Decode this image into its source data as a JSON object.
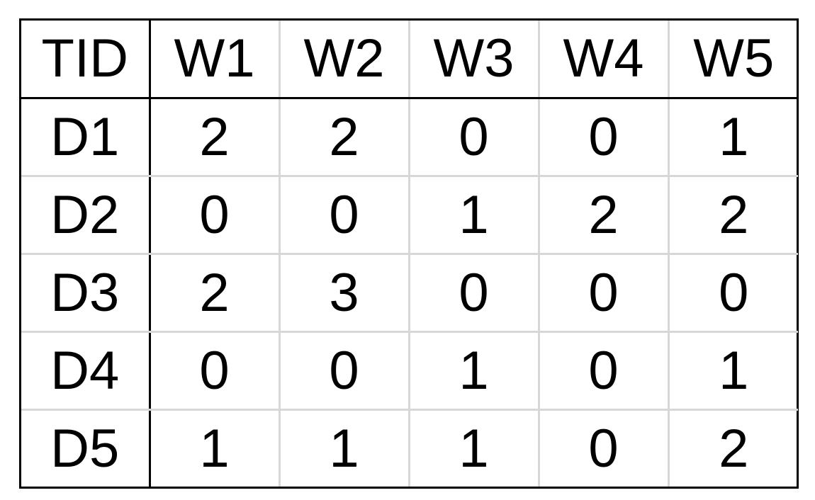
{
  "table": {
    "headers": [
      "TID",
      "W1",
      "W2",
      "W3",
      "W4",
      "W5"
    ],
    "rows": [
      {
        "id": "D1",
        "values": [
          "2",
          "2",
          "0",
          "0",
          "1"
        ]
      },
      {
        "id": "D2",
        "values": [
          "0",
          "0",
          "1",
          "2",
          "2"
        ]
      },
      {
        "id": "D3",
        "values": [
          "2",
          "3",
          "0",
          "0",
          "0"
        ]
      },
      {
        "id": "D4",
        "values": [
          "0",
          "0",
          "1",
          "0",
          "1"
        ]
      },
      {
        "id": "D5",
        "values": [
          "1",
          "1",
          "1",
          "0",
          "2"
        ]
      }
    ]
  },
  "colors": {
    "outer_border": "#000000",
    "grid_lines": "#d7d7d7",
    "text": "#000000",
    "background": "#ffffff"
  }
}
